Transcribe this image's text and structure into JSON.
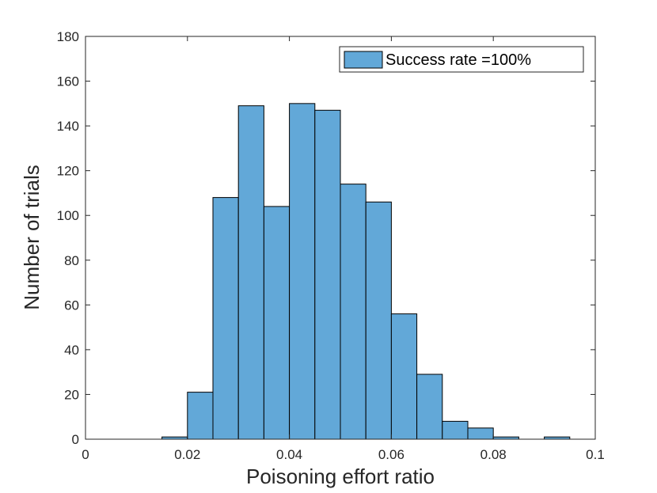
{
  "chart_data": {
    "type": "bar",
    "subtype": "histogram",
    "xlabel": "Poisoning effort ratio",
    "ylabel": "Number of trials",
    "xlim": [
      0,
      0.1
    ],
    "ylim": [
      0,
      180
    ],
    "xticks": [
      "0",
      "0.02",
      "0.04",
      "0.06",
      "0.08",
      "0.1"
    ],
    "yticks": [
      "0",
      "20",
      "40",
      "60",
      "80",
      "100",
      "120",
      "140",
      "160",
      "180"
    ],
    "bin_width": 0.005,
    "bins": [
      {
        "x0": 0.015,
        "x1": 0.02,
        "count": 1
      },
      {
        "x0": 0.02,
        "x1": 0.025,
        "count": 21
      },
      {
        "x0": 0.025,
        "x1": 0.03,
        "count": 108
      },
      {
        "x0": 0.03,
        "x1": 0.035,
        "count": 149
      },
      {
        "x0": 0.035,
        "x1": 0.04,
        "count": 104
      },
      {
        "x0": 0.04,
        "x1": 0.045,
        "count": 150
      },
      {
        "x0": 0.045,
        "x1": 0.05,
        "count": 147
      },
      {
        "x0": 0.05,
        "x1": 0.055,
        "count": 114
      },
      {
        "x0": 0.055,
        "x1": 0.06,
        "count": 106
      },
      {
        "x0": 0.06,
        "x1": 0.065,
        "count": 56
      },
      {
        "x0": 0.065,
        "x1": 0.07,
        "count": 29
      },
      {
        "x0": 0.07,
        "x1": 0.075,
        "count": 8
      },
      {
        "x0": 0.075,
        "x1": 0.08,
        "count": 5
      },
      {
        "x0": 0.08,
        "x1": 0.085,
        "count": 1
      },
      {
        "x0": 0.085,
        "x1": 0.09,
        "count": 0
      },
      {
        "x0": 0.09,
        "x1": 0.095,
        "count": 1
      }
    ],
    "series": [
      {
        "name": "Success rate =100%",
        "color": "#62a8d8"
      }
    ],
    "legend": {
      "position": "top-right",
      "label": "Success rate =100%"
    },
    "grid": false
  },
  "colors": {
    "bar_fill": "#62a8d8",
    "bar_edge": "#000000",
    "axis": "#262626"
  }
}
